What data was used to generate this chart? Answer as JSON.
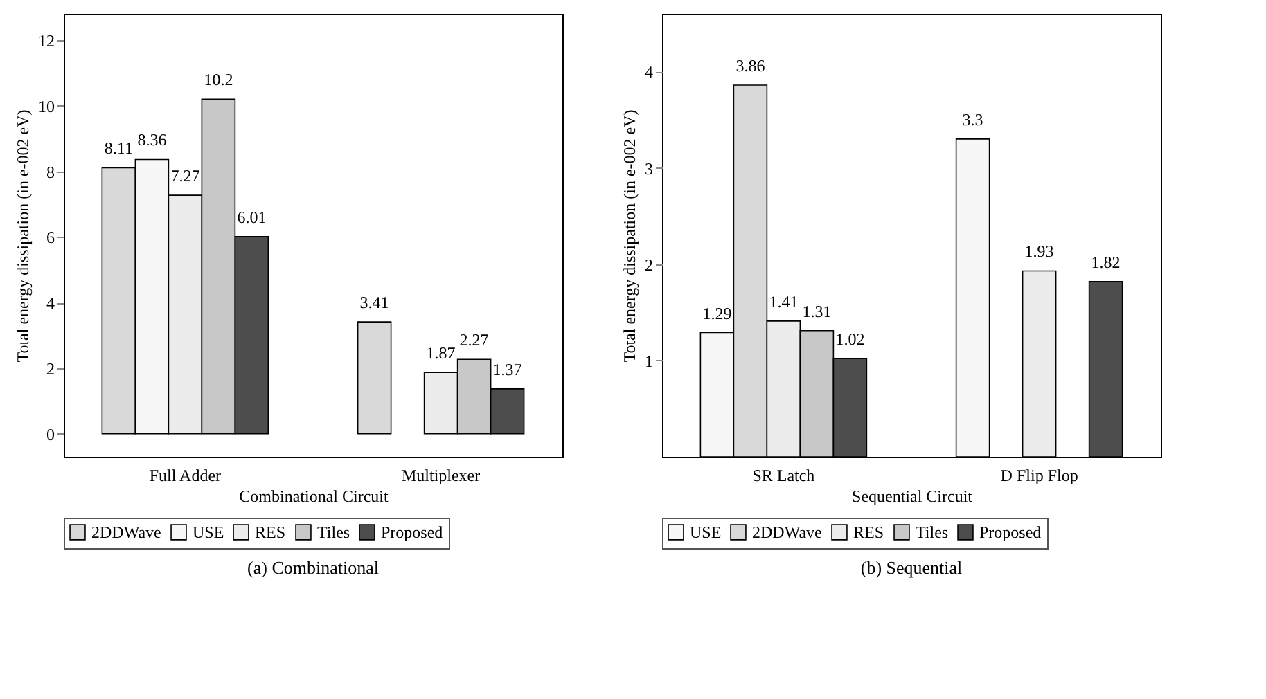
{
  "chart_data": [
    {
      "type": "bar",
      "title": "(a) Combinational",
      "xlabel": "Combinational Circuit",
      "ylabel": "Total energy dissipation (in e-002 eV)",
      "categories": [
        "Full Adder",
        "Multiplexer"
      ],
      "series": [
        {
          "name": "2DDWave",
          "color": "#d9d9d9",
          "values": [
            8.11,
            3.41
          ],
          "value_labels": [
            "8.11",
            "3.41"
          ]
        },
        {
          "name": "USE",
          "color": "#f7f7f7",
          "values": [
            8.36,
            null
          ],
          "value_labels": [
            "8.36",
            null
          ]
        },
        {
          "name": "RES",
          "color": "#ececec",
          "values": [
            7.27,
            1.87
          ],
          "value_labels": [
            "7.27",
            "1.87"
          ]
        },
        {
          "name": "Tiles",
          "color": "#c8c8c8",
          "values": [
            10.2,
            2.27
          ],
          "value_labels": [
            "10.2",
            "2.27"
          ]
        },
        {
          "name": "Proposed",
          "color": "#4d4d4d",
          "values": [
            6.01,
            1.37
          ],
          "value_labels": [
            "6.01",
            "1.37"
          ]
        }
      ],
      "ylim": [
        -0.7,
        12.8
      ],
      "yticks": [
        0,
        2,
        4,
        6,
        8,
        10,
        12
      ],
      "legend": "bottom"
    },
    {
      "type": "bar",
      "title": "(b) Sequential",
      "xlabel": "Sequential Circuit",
      "ylabel": "Total energy dissipation (in e-002 eV)",
      "categories": [
        "SR Latch",
        "D Flip Flop"
      ],
      "series": [
        {
          "name": "USE",
          "color": "#f7f7f7",
          "values": [
            1.29,
            3.3
          ],
          "value_labels": [
            "1.29",
            "3.3"
          ]
        },
        {
          "name": "2DDWave",
          "color": "#d9d9d9",
          "values": [
            3.86,
            null
          ],
          "value_labels": [
            "3.86",
            null
          ]
        },
        {
          "name": "RES",
          "color": "#ececec",
          "values": [
            1.41,
            1.93
          ],
          "value_labels": [
            "1.41",
            "1.93"
          ]
        },
        {
          "name": "Tiles",
          "color": "#c8c8c8",
          "values": [
            1.31,
            null
          ],
          "value_labels": [
            "1.31",
            null
          ]
        },
        {
          "name": "Proposed",
          "color": "#4d4d4d",
          "values": [
            1.02,
            1.82
          ],
          "value_labels": [
            "1.02",
            "1.82"
          ]
        }
      ],
      "ylim": [
        0,
        4.6
      ],
      "yticks": [
        1,
        2,
        3,
        4
      ],
      "legend": "bottom"
    }
  ]
}
